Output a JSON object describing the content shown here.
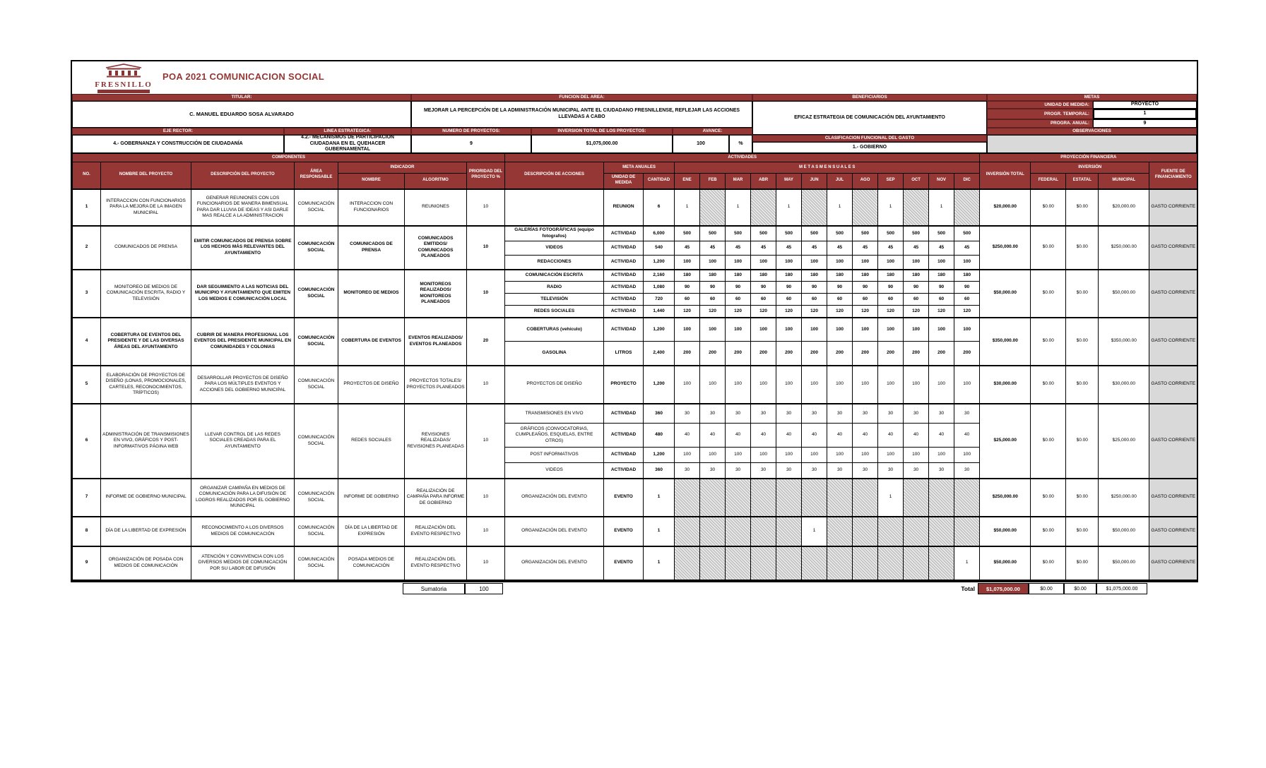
{
  "title": "POA 2021 COMUNICACION SOCIAL",
  "logo": {
    "name": "FRESNILLO"
  },
  "header": {
    "titular_label": "TITULAR:",
    "titular": "C. MANUEL EDUARDO SOSA ALVARADO",
    "funcion_label": "FUNCION DEL AREA:",
    "funcion": "MEJORAR LA PERCEPCIÓN DE LA ADMINISTRACIÓN MUNICIPAL ANTE EL CIUDADANO FRESNILLENSE, REFLEJAR LAS ACCIONES LLEVADAS A CABO",
    "beneficiarios_label": "BENEFICIARIOS",
    "beneficiarios": "EFICAZ ESTRATEGIA DE COMUNICACIÓN DEL AYUNTAMIENTO",
    "metas_label": "METAS",
    "unidad_medida_label": "UNIDAD DE MEDIDA:",
    "unidad_medida": "PROYECTO",
    "progr_temporal_label": "PROGR. TEMPORAL:",
    "progr_temporal": "1",
    "progra_anual_label": "PROGRA. ANUAL:",
    "progra_anual": "9",
    "eje_label": "EJE RECTOR:",
    "eje": "4.- GOBERNANZA Y CONSTRUCCIÓN DE CIUDADANÍA",
    "linea_label": "LINEA ESTRATÉGICA:",
    "linea": "4.2.- MECANISMOS DE PARTICIPACIÓN CIUDADANA EN EL QUEHACER GUBERNAMENTAL",
    "num_proyectos_label": "NUMERO DE PROYECTOS:",
    "num_proyectos": "9",
    "inversion_label": "INVERSIÓN TOTAL DE LOS PROYECTOS:",
    "inversion": "$1,075,000.00",
    "avance_label": "AVANCE:",
    "avance": "100",
    "avance_unit": "%",
    "clasificacion_label": "CLASIFICACIÓN FUNCIONAL DEL GASTO",
    "clasificacion": "1.- GOBIERNO",
    "observaciones_label": "OBSERVACIONES"
  },
  "table": {
    "bands": {
      "componentes": "COMPONENTES",
      "actividades": "ACTIVIDADES",
      "proyeccion": "PROYECCIÓN FINANCIERA",
      "indicador": "INDICADOR",
      "meta_anuales": "META ANUALES",
      "metas_mensuales": "M E T A S   M E N S U A L E S",
      "inversion": "INVERSIÓN"
    },
    "cols": {
      "no": "NO.",
      "nombre": "NOMBRE DEL PROYECTO",
      "descripcion": "DESCRIPCIÓN DEL PROYECTO",
      "area": "ÁREA RESPONSABLE",
      "nombre_ind": "NOMBRE",
      "algoritmo": "ALGORITMO",
      "prioridad": "PRIORIDAD DEL PROYECTO  %",
      "acciones": "DESCRIPCIÓN DE ACCIONES",
      "unidad": "UNIDAD DE MEDIDA",
      "cantidad": "CANTIDAD",
      "inv_total": "INVERSIÓN TOTAL",
      "federal": "FEDERAL",
      "estatal": "ESTATAL",
      "municipal": "MUNICIPAL",
      "fuente": "FUENTE DE FINANCIAMIENTO"
    },
    "months": [
      "ENE",
      "FEB",
      "MAR",
      "ABR",
      "MAY",
      "JUN",
      "JUL",
      "AGO",
      "SEP",
      "OCT",
      "NOV",
      "DIC"
    ],
    "projects": [
      {
        "no": "1",
        "nombre": "INTERACCION CON FUNCIONARIOS PARA LA MEJORA DE LA IMAGEN MUNICIPAL",
        "descripcion": "GENERAR REUNIONES CON LOS FUNCIONARIOS DE MANERA BIMENSUAL PARA DAR LLUVIA DE IDEAS Y ASI DARLE MAS REALCE A LA ADMINISTRACION",
        "area": "COMUNICACIÓN SOCIAL",
        "indicador": "INTERACCION CON FUNCIONARIOS",
        "algoritmo": "REUNIONES",
        "prioridad": "10",
        "emph": false,
        "acciones": [
          {
            "desc": "",
            "unidad": "REUNION",
            "cantidad": "6",
            "meses": [
              "1",
              "",
              "1",
              "",
              "1",
              "",
              "1",
              "",
              "1",
              "",
              "1",
              ""
            ],
            "hatch": [
              0,
              1,
              0,
              1,
              0,
              1,
              0,
              1,
              0,
              1,
              0,
              1
            ]
          }
        ],
        "inversion": "$20,000.00",
        "federal": "$0.00",
        "estatal": "$0.00",
        "municipal": "$20,000.00",
        "fuente": "GASTO CORRIENTE"
      },
      {
        "no": "2",
        "nombre": "COMUNICADOS DE PRENSA",
        "descripcion": "EMITIR COMUNICADOS DE PRENSA SOBRE LOS HECHOS MÁS RELEVANTES DEL AYUNTAMIENTO",
        "area": "COMUNICACIÓN SOCIAL",
        "indicador": "COMUNICADOS DE PRENSA",
        "algoritmo": "COMUNICADOS EMITIDOS/ COMUNICADOS PLANEADOS",
        "prioridad": "10",
        "emph": true,
        "acciones": [
          {
            "desc": "GALERÍAS FOTOGRÁFICAS (equipo fotografos)",
            "unidad": "ACTIVIDAD",
            "cantidad": "6,000",
            "meses": [
              "500",
              "500",
              "500",
              "500",
              "500",
              "500",
              "500",
              "500",
              "500",
              "500",
              "500",
              "500"
            ]
          },
          {
            "desc": "VIDEOS",
            "unidad": "ACTIVIDAD",
            "cantidad": "540",
            "meses": [
              "45",
              "45",
              "45",
              "45",
              "45",
              "45",
              "45",
              "45",
              "45",
              "45",
              "45",
              "45"
            ]
          },
          {
            "desc": "REDACCIONES",
            "unidad": "ACTIVIDAD",
            "cantidad": "1,200",
            "meses": [
              "100",
              "100",
              "100",
              "100",
              "100",
              "100",
              "100",
              "100",
              "100",
              "100",
              "100",
              "100"
            ]
          }
        ],
        "inversion": "$250,000.00",
        "federal": "$0.00",
        "estatal": "$0.00",
        "municipal": "$250,000.00",
        "fuente": "GASTO CORRIENTE"
      },
      {
        "no": "3",
        "nombre": "MONITOREO DE MEDIOS DE COMUNICACIÓN ESCRITA, RADIO Y TELEVISIÓN",
        "descripcion": "DAR SEGUIMIENTO A LAS NOTICIAS DEL MUNICIPIO Y AYUNTAMIENTO QUE EMITEN LOS MEDIOS E COMUNICACIÓN LOCAL",
        "area": "COMUNICACIÓN SOCIAL",
        "indicador": "MONITOREO DE MEDIOS",
        "algoritmo": "MONITOREOS REALIZADOS/ MONITOREOS PLANEADOS",
        "prioridad": "10",
        "emph": true,
        "acciones": [
          {
            "desc": "COMUNICACIÓN ESCRITA",
            "unidad": "ACTIVIDAD",
            "cantidad": "2,160",
            "meses": [
              "180",
              "180",
              "180",
              "180",
              "180",
              "180",
              "180",
              "180",
              "180",
              "180",
              "180",
              "180"
            ]
          },
          {
            "desc": "RADIO",
            "unidad": "ACTIVIDAD",
            "cantidad": "1,080",
            "meses": [
              "90",
              "90",
              "90",
              "90",
              "90",
              "90",
              "90",
              "90",
              "90",
              "90",
              "90",
              "90"
            ]
          },
          {
            "desc": "TELEVISIÓN",
            "unidad": "ACTIVIDAD",
            "cantidad": "720",
            "meses": [
              "60",
              "60",
              "60",
              "60",
              "60",
              "60",
              "60",
              "60",
              "60",
              "60",
              "60",
              "60"
            ]
          },
          {
            "desc": "REDES SOCIALES",
            "unidad": "ACTIVIDAD",
            "cantidad": "1,440",
            "meses": [
              "120",
              "120",
              "120",
              "120",
              "120",
              "120",
              "120",
              "120",
              "120",
              "120",
              "120",
              "120"
            ]
          }
        ],
        "inversion": "$50,000.00",
        "federal": "$0.00",
        "estatal": "$0.00",
        "municipal": "$50,000.00",
        "fuente": "GASTO CORRIENTE"
      },
      {
        "no": "4",
        "nombre": "COBERTURA DE EVENTOS DEL PRESIDENTE Y DE LAS DIVERSAS ÁREAS DEL AYUNTAMIENTO",
        "nombre_emph": true,
        "descripcion": "CUBRIR DE MANERA PROFESIONAL LOS EVENTOS DEL PRESIDENTE MUNICIPAL EN COMUNIDADES Y COLONIAS",
        "area": "COMUNICACIÓN SOCIAL",
        "indicador": "COBERTURA DE EVENTOS",
        "algoritmo": "EVENTOS REALIZADOS/ EVENTOS PLANEADOS",
        "prioridad": "20",
        "emph": true,
        "acciones": [
          {
            "desc": "COBERTURAS (vehículo)",
            "unidad": "ACTIVIDAD",
            "cantidad": "1,200",
            "meses": [
              "100",
              "100",
              "100",
              "100",
              "100",
              "100",
              "100",
              "100",
              "100",
              "100",
              "100",
              "100"
            ]
          },
          {
            "desc": "GASOLINA",
            "unidad": "LITROS",
            "cantidad": "2,400",
            "meses": [
              "200",
              "200",
              "200",
              "200",
              "200",
              "200",
              "200",
              "200",
              "200",
              "200",
              "200",
              "200"
            ]
          }
        ],
        "inversion": "$350,000.00",
        "federal": "$0.00",
        "estatal": "$0.00",
        "municipal": "$350,000.00",
        "fuente": "GASTO CORRIENTE"
      },
      {
        "no": "5",
        "nombre": "ELABORACIÓN DE PROYECTOS DE DISEÑO (LONAS, PROMOCIONALES, CARTELES, RECONOCIMIENTOS, TRÍPTICOS)",
        "descripcion": "DESARROLLAR PROYECTOS DE DISEÑO PARA LOS MÚLTIPLES EVENTOS Y ACCIONES DEL GOBIERNO MUNICIPAL",
        "area": "COMUNICACIÓN SOCIAL",
        "indicador": "PROYECTOS DE DISEÑO",
        "algoritmo": "PROYECTOS TOTALES/ PROYECTOS PLANEADOS",
        "prioridad": "10",
        "emph": false,
        "acciones": [
          {
            "desc": "PROYECTOS DE DISEÑO",
            "unidad": "PROYECTO",
            "cantidad": "1,200",
            "meses": [
              "100",
              "100",
              "100",
              "100",
              "100",
              "100",
              "100",
              "100",
              "100",
              "100",
              "100",
              "100"
            ]
          }
        ],
        "inversion": "$30,000.00",
        "federal": "$0.00",
        "estatal": "$0.00",
        "municipal": "$30,000.00",
        "fuente": "GASTO CORRIENTE"
      },
      {
        "no": "6",
        "nombre": "ADMINISTRACIÓN DE TRANSMISIONES EN VIVO, GRÁFICOS Y POST-INFORMATIVOS PÁGINA WEB",
        "descripcion": "LLEVAR CONTROL DE LAS REDES SOCIALES CREADAS PARA EL AYUNTAMIENTO",
        "area": "COMUNICACIÓN SOCIAL",
        "indicador": "REDES SOCIALES",
        "algoritmo": "REVISIONES REALIZADAS/ REVISIONES PLANEADAS",
        "prioridad": "10",
        "emph": false,
        "acciones": [
          {
            "desc": "TRANSMISIONES EN VIVO",
            "unidad": "ACTIVIDAD",
            "cantidad": "360",
            "meses": [
              "30",
              "30",
              "30",
              "30",
              "30",
              "30",
              "30",
              "30",
              "30",
              "30",
              "30",
              "30"
            ]
          },
          {
            "desc": "GRÁFICOS (CONVOCATORIAS, CUMPLEAÑOS, ESQUELAS, ENTRE OTROS)",
            "unidad": "ACTIVIDAD",
            "cantidad": "480",
            "meses": [
              "40",
              "40",
              "40",
              "40",
              "40",
              "40",
              "40",
              "40",
              "40",
              "40",
              "40",
              "40"
            ]
          },
          {
            "desc": "POST INFORMATIVOS",
            "unidad": "ACTIVIDAD",
            "cantidad": "1,200",
            "meses": [
              "100",
              "100",
              "100",
              "100",
              "100",
              "100",
              "100",
              "100",
              "100",
              "100",
              "100",
              "100"
            ]
          },
          {
            "desc": "VIDEOS",
            "unidad": "ACTIVIDAD",
            "cantidad": "360",
            "meses": [
              "30",
              "30",
              "30",
              "30",
              "30",
              "30",
              "30",
              "30",
              "30",
              "30",
              "30",
              "30"
            ]
          }
        ],
        "inversion": "$25,000.00",
        "federal": "$0.00",
        "estatal": "$0.00",
        "municipal": "$25,000.00",
        "fuente": "GASTO CORRIENTE"
      },
      {
        "no": "7",
        "nombre": "INFORME DE GOBIERNO MUNICIPAL",
        "descripcion": "ORGANIZAR CAMPAÑA EN MEDIOS DE COMUNICACIÓN PARA LA DIFUSIÓN DE LOGROS REALIZADOS POR EL GOBIERNO MUNICIPAL",
        "area": "COMUNICACIÓN SOCIAL",
        "indicador": "INFORME DE GOBIERNO",
        "algoritmo": "REALIZACIÓN DE CAMPAÑA PARA INFORME DE GOBIERNO",
        "prioridad": "10",
        "emph": false,
        "acciones": [
          {
            "desc": "ORGANIZACIÓN DEL EVENTO",
            "unidad": "EVENTO",
            "cantidad": "1",
            "meses": [
              "",
              "",
              "",
              "",
              "",
              "",
              "",
              "",
              "1",
              "",
              "",
              ""
            ],
            "hatch": [
              1,
              1,
              1,
              1,
              1,
              1,
              1,
              1,
              0,
              1,
              1,
              1
            ]
          }
        ],
        "inversion": "$250,000.00",
        "federal": "$0.00",
        "estatal": "$0.00",
        "municipal": "$250,000.00",
        "fuente": "GASTO CORRIENTE"
      },
      {
        "no": "8",
        "nombre": "DÍA DE LA LIBERTAD DE EXPRESIÓN",
        "descripcion": "RECONOCIMIENTO A LOS DIVERSOS MEDIOS DE COMUNICACIÓN",
        "area": "COMUNICACIÓN SOCIAL",
        "indicador": "DÍA DE LA LIBERTAD DE EXPRESIÓN",
        "algoritmo": "REALIZACIÓN DEL EVENTO RESPECTIVO",
        "prioridad": "10",
        "emph": false,
        "acciones": [
          {
            "desc": "ORGANIZACIÓN DEL EVENTO",
            "unidad": "EVENTO",
            "cantidad": "1",
            "meses": [
              "",
              "",
              "",
              "",
              "",
              "1",
              "",
              "",
              "",
              "",
              "",
              ""
            ],
            "hatch": [
              1,
              1,
              1,
              1,
              1,
              0,
              1,
              1,
              1,
              1,
              1,
              1
            ]
          }
        ],
        "inversion": "$50,000.00",
        "federal": "$0.00",
        "estatal": "$0.00",
        "municipal": "$50,000.00",
        "fuente": "GASTO CORRIENTE"
      },
      {
        "no": "9",
        "nombre": "ORGANIZACIÓN DE POSADA CON MEDIOS DE COMUNICACIÓN",
        "descripcion": "ATENCIÓN Y CONVIVENCIA CON LOS DIVERSOS MEDIOS DE COMUNICACIÓN POR SU LABOR DE DIFUSIÓN",
        "area": "COMUNICACIÓN SOCIAL",
        "indicador": "POSADA MEDIOS DE COMUNICACIÓN",
        "algoritmo": "REALIZACIÓN DEL EVENTO RESPECTIVO",
        "prioridad": "10",
        "emph": false,
        "acciones": [
          {
            "desc": "ORGANIZACIÓN DEL EVENTO",
            "unidad": "EVENTO",
            "cantidad": "1",
            "meses": [
              "",
              "",
              "",
              "",
              "",
              "",
              "",
              "",
              "",
              "",
              "",
              "1"
            ],
            "hatch": [
              1,
              1,
              1,
              1,
              1,
              1,
              1,
              1,
              1,
              1,
              1,
              0
            ]
          }
        ],
        "inversion": "$50,000.00",
        "federal": "$0.00",
        "estatal": "$0.00",
        "municipal": "$50,000.00",
        "fuente": "GASTO CORRIENTE"
      }
    ]
  },
  "footer": {
    "sumatoria_label": "Sumatoria",
    "sumatoria": "100",
    "total_label": "Total",
    "total_inversion": "$1,075,000.00",
    "total_federal": "$0.00",
    "total_estatal": "$0.00",
    "total_municipal": "$1,075,000.00"
  },
  "colors": {
    "band": "#953735",
    "gray": "#d9d9d9",
    "title": "#953735"
  }
}
